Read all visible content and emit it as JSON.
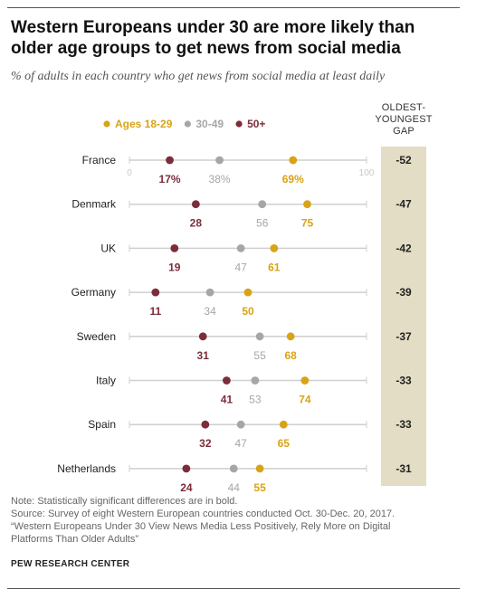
{
  "title": "Western Europeans under 30 are more likely than older age groups to get news from social media",
  "subtitle": "% of adults in each country who get news from social media at least daily",
  "gap_header": [
    "OLDEST-",
    "YOUNGEST",
    "GAP"
  ],
  "axis_tick_labels": {
    "min": "0",
    "max": "100"
  },
  "colors": {
    "ages_18_29": "#d9a316",
    "ages_30_49": "#a6a6a6",
    "ages_50_plus": "#7b2d3a",
    "gap_band": "#e2ddc4",
    "axis_line": "#cfcfcf"
  },
  "chart_data": {
    "type": "dot",
    "xlim": [
      0,
      100
    ],
    "legend_position": "top",
    "categories": [
      "France",
      "Denmark",
      "UK",
      "Germany",
      "Sweden",
      "Italy",
      "Spain",
      "Netherlands"
    ],
    "series": [
      {
        "name": "Ages 18-29",
        "values": [
          69,
          75,
          61,
          50,
          68,
          74,
          65,
          55
        ],
        "labels": [
          "69%",
          "75",
          "61",
          "50",
          "68",
          "74",
          "65",
          "55"
        ]
      },
      {
        "name": "30-49",
        "values": [
          38,
          56,
          47,
          34,
          55,
          53,
          47,
          44
        ],
        "labels": [
          "38%",
          "56",
          "47",
          "34",
          "55",
          "53",
          "47",
          "44"
        ]
      },
      {
        "name": "50+",
        "values": [
          17,
          28,
          19,
          11,
          31,
          41,
          32,
          24
        ],
        "labels": [
          "17%",
          "28",
          "19",
          "11",
          "31",
          "41",
          "32",
          "24"
        ]
      }
    ],
    "gap": [
      "-52",
      "-47",
      "-42",
      "-39",
      "-37",
      "-33",
      "-33",
      "-31"
    ]
  },
  "note": "Note: Statistically significant differences are in bold.",
  "source_lines": [
    "Source: Survey of eight Western European countries conducted Oct. 30-Dec. 20, 2017.",
    "“Western Europeans Under 30 View News Media Less Positively, Rely More on Digital",
    "Platforms Than Older Adults”"
  ],
  "credit": "PEW RESEARCH CENTER"
}
